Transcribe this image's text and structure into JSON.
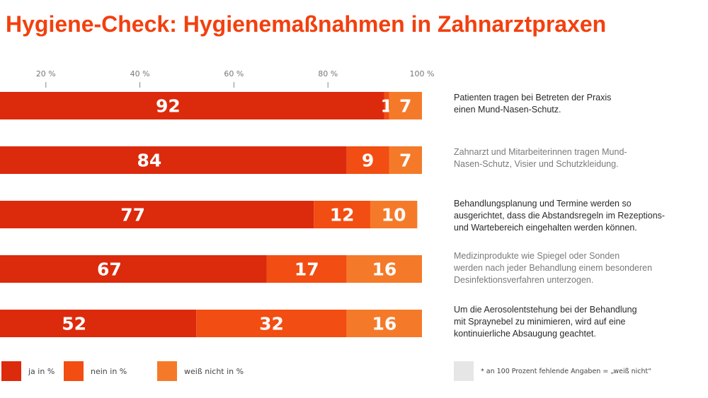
{
  "chart_data": {
    "type": "bar",
    "orientation": "horizontal",
    "stacked": true,
    "title": "Hygiene-Check: Hygienemaßnahmen in Zahnarztpraxen",
    "xlim": [
      0,
      100
    ],
    "ticks": [
      "20 %",
      "40 %",
      "60 %",
      "80 %",
      "100 %"
    ],
    "tick_values": [
      20,
      40,
      60,
      80,
      100
    ],
    "categories": [
      "Patienten tragen bei Betreten der Praxis einen Mund-Nasen-Schutz.",
      "Zahnarzt und Mitarbeiterinnen tragen Mund-Nasen-Schutz, Visier und Schutzkleidung.",
      "Behandlungsplanung und Termine werden so ausgerichtet, dass die Abstandsregeln im Rezeptions- und Wartebereich eingehalten werden können.",
      "Medizinprodukte wie Spiegel oder Sonden werden nach jeder Behandlung einem besonderen Desinfektionsverfahren unterzogen.",
      "Um die Aerosolentstehung bei der Behandlung mit Spraynebel zu minimieren, wird auf eine kontinuierliche Absaugung geachtet."
    ],
    "series": [
      {
        "name": "ja in %",
        "color": "#dc2a0c",
        "values": [
          92,
          84,
          77,
          67,
          52
        ]
      },
      {
        "name": "nein in %",
        "color": "#f24d12",
        "values": [
          1,
          9,
          12,
          17,
          32
        ]
      },
      {
        "name": "weiß nicht in %",
        "color": "#f47a2a",
        "values": [
          7,
          7,
          10,
          16,
          16
        ]
      }
    ],
    "legend_placement": "bottom",
    "grid": false,
    "footnote": "* an 100 Prozent fehlende Angaben = „weiß nicht“",
    "footnote_color": "#e6e6e6"
  },
  "descriptions": [
    [
      "Patienten tragen bei Betreten der Praxis",
      "einen Mund-Nasen-Schutz."
    ],
    [
      "Zahnarzt und Mitarbeiterinnen tragen Mund-",
      "Nasen-Schutz, Visier und Schutzkleidung."
    ],
    [
      "Behandlungsplanung und Termine werden so",
      "ausgerichtet, dass die Abstandsregeln im Rezeptions-",
      "und Wartebereich eingehalten werden können."
    ],
    [
      "Medizinprodukte wie Spiegel oder Sonden",
      "werden nach jeder Behandlung einem besonderen",
      "Desinfektionsverfahren unterzogen."
    ],
    [
      "Um die Aerosolentstehung bei der Behandlung",
      "mit Spraynebel zu minimieren, wird auf eine",
      "kontinuierliche Absaugung geachtet."
    ]
  ]
}
